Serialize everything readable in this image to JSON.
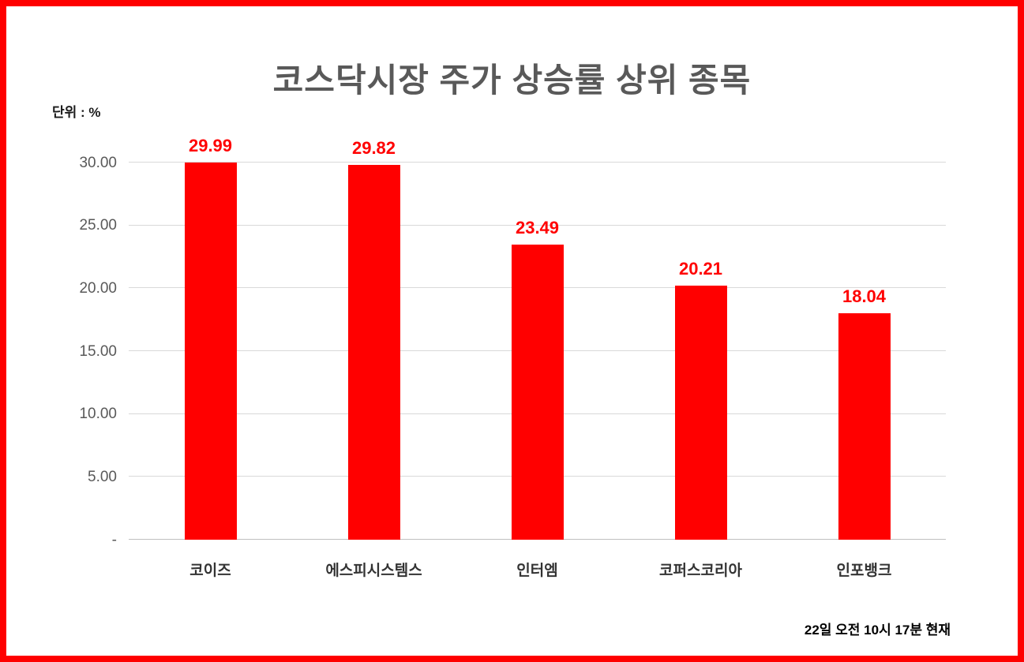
{
  "chart_data": {
    "type": "bar",
    "title": "코스닥시장 주가 상승률 상위 종목",
    "unit_label": "단위 : %",
    "categories": [
      "코이즈",
      "에스피시스템스",
      "인터엠",
      "코퍼스코리아",
      "인포뱅크"
    ],
    "values": [
      29.99,
      29.82,
      23.49,
      20.21,
      18.04
    ],
    "value_labels": [
      "29.99",
      "29.82",
      "23.49",
      "20.21",
      "18.04"
    ],
    "y_ticks": [
      {
        "label": "30.00",
        "value": 30
      },
      {
        "label": "25.00",
        "value": 25
      },
      {
        "label": "20.00",
        "value": 20
      },
      {
        "label": "15.00",
        "value": 15
      },
      {
        "label": "10.00",
        "value": 10
      },
      {
        "label": "5.00",
        "value": 5
      },
      {
        "label": "-",
        "value": 0
      }
    ],
    "ylim": [
      0,
      30
    ],
    "bar_color": "#ff0000",
    "value_label_color": "#ff0000",
    "grid": true,
    "legend": "none",
    "footnote": "22일  오전 10시 17분 현재"
  }
}
